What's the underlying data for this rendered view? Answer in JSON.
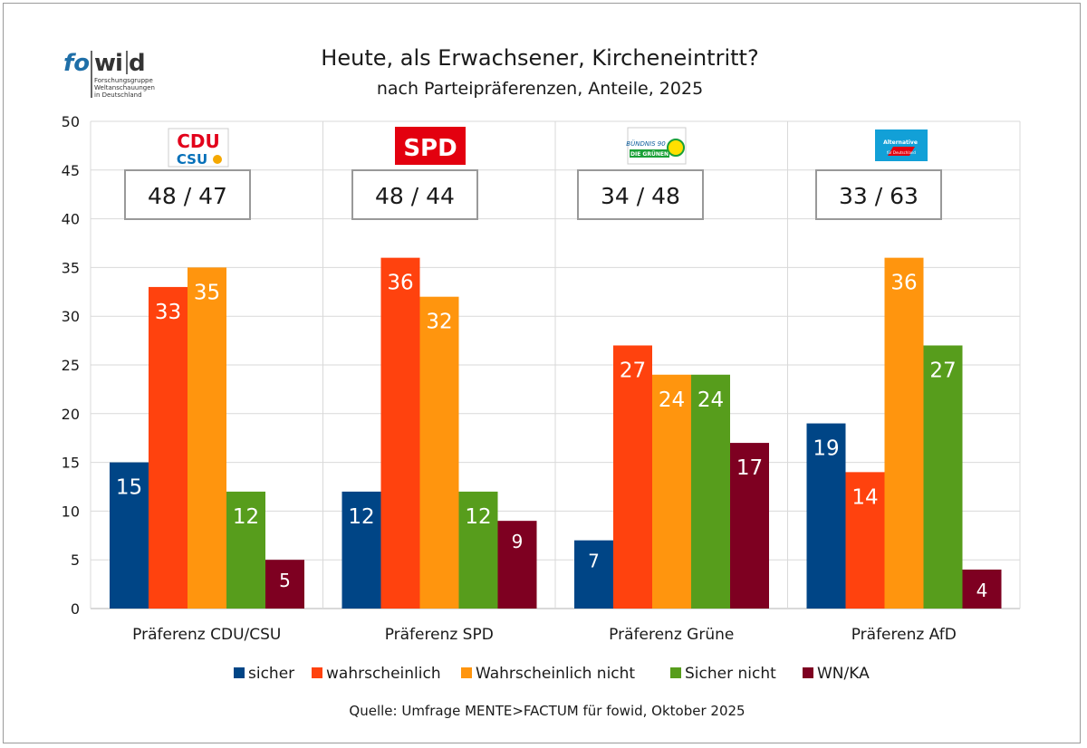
{
  "logo": {
    "word_part1": "fo",
    "word_part2": "w",
    "word_part3": "i",
    "word_part4": "d",
    "subtitle_lines": [
      "Forschungsgruppe",
      "Weltanschauungen",
      "in Deutschland"
    ]
  },
  "party_logos": [
    {
      "line1": "CDU",
      "line2": "CSU"
    },
    {
      "line1": "SPD"
    },
    {
      "line1": "BÜNDNIS 90",
      "line2": "DIE GRÜNEN"
    },
    {
      "line1": "Alternative",
      "line2": "für Deutschland"
    }
  ],
  "source": "Quelle: Umfrage MENTE>FACTUM für fowid, Oktober 2025",
  "colors": {
    "sicher": "#004586",
    "wahrscheinlich": "#ff420e",
    "wahrscheinlich_nicht": "#ff950e",
    "sicher_nicht": "#579d1c",
    "wnka": "#7e0021",
    "grid": "#d9d9d9",
    "axis": "#b3b3b3"
  },
  "chart_data": {
    "type": "bar",
    "title": "Heute, als Erwachsener, Kircheneintritt?",
    "subtitle": "nach Parteipräferenzen, Anteile, 2025",
    "categories": [
      "Präferenz CDU/CSU",
      "Präferenz SPD",
      "Präferenz Grüne",
      "Präferenz AfD"
    ],
    "series": [
      {
        "name": "sicher",
        "values": [
          15,
          12,
          7,
          19
        ]
      },
      {
        "name": "wahrscheinlich",
        "values": [
          33,
          36,
          27,
          14
        ]
      },
      {
        "name": "Wahrscheinlich nicht",
        "values": [
          35,
          32,
          24,
          36
        ]
      },
      {
        "name": "Sicher nicht",
        "values": [
          12,
          12,
          24,
          27
        ]
      },
      {
        "name": "WN/KA",
        "values": [
          5,
          9,
          17,
          4
        ]
      }
    ],
    "annotations": [
      "48 / 47",
      "48 / 44",
      "34 / 48",
      "33 / 63"
    ],
    "ylim": [
      0,
      50
    ],
    "yticks": [
      0,
      5,
      10,
      15,
      20,
      25,
      30,
      35,
      40,
      45,
      50
    ],
    "xlabel": "",
    "ylabel": "",
    "grid": true,
    "legend_position": "bottom"
  }
}
